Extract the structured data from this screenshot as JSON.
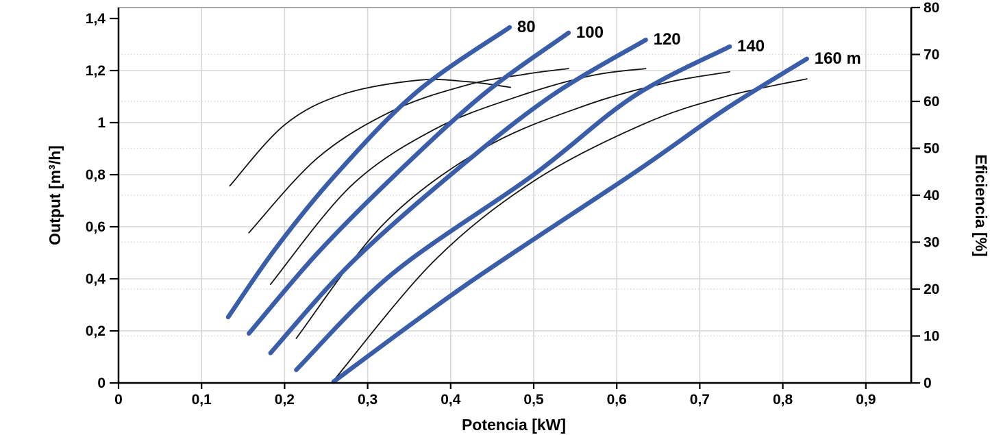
{
  "chart_data": {
    "type": "line",
    "title": "",
    "xlabel": "Potencia [kW]",
    "ylabel_left": "Output [m³/h]",
    "ylabel_right": "Eficiencia [%]",
    "xlim": [
      0,
      0.955
    ],
    "ylim_left": [
      0,
      1.44
    ],
    "ylim_right": [
      0,
      80
    ],
    "legend": "none",
    "grid": {
      "vertical_solid_power": [
        0.1,
        0.2,
        0.3,
        0.4,
        0.5,
        0.6,
        0.7,
        0.8,
        0.9
      ],
      "horizontal_solid_output": [
        0.2,
        0.4,
        0.6,
        0.8,
        1.0,
        1.2
      ],
      "horizontal_dotted_efficiency": [
        10,
        20,
        30,
        40,
        50,
        60,
        70
      ]
    },
    "x_ticks": {
      "values": [
        0,
        0.1,
        0.2,
        0.3,
        0.4,
        0.5,
        0.6,
        0.7,
        0.8,
        0.9
      ],
      "labels": [
        "0",
        "0,1",
        "0,2",
        "0,3",
        "0,4",
        "0,5",
        "0,6",
        "0,7",
        "0,8",
        "0,9"
      ]
    },
    "y_left_ticks": {
      "values": [
        0,
        0.2,
        0.4,
        0.6,
        0.8,
        1.0,
        1.2,
        1.4
      ],
      "labels": [
        "0",
        "0,2",
        "0,4",
        "0,6",
        "0,8",
        "1",
        "1,2",
        "1,4"
      ]
    },
    "y_right_ticks": {
      "values": [
        0,
        10,
        20,
        30,
        40,
        50,
        60,
        70,
        80
      ],
      "labels": [
        "0",
        "10",
        "20",
        "30",
        "40",
        "50",
        "60",
        "70",
        "80"
      ]
    },
    "colors": {
      "head_curve": "#3a5da9",
      "efficiency_curve": "#141414",
      "grid_solid": "#d7d7d7",
      "grid_dotted": "#d9d9d9",
      "axis": "#000000",
      "top_border": "#a8a8a8"
    },
    "head_curves": [
      {
        "label": "80",
        "head_m": 80,
        "points": [
          [
            0.132,
            0.253
          ],
          [
            0.19,
            0.52
          ],
          [
            0.263,
            0.805
          ],
          [
            0.36,
            1.12
          ],
          [
            0.471,
            1.366
          ]
        ]
      },
      {
        "label": "100",
        "head_m": 100,
        "points": [
          [
            0.157,
            0.19
          ],
          [
            0.24,
            0.5
          ],
          [
            0.335,
            0.805
          ],
          [
            0.44,
            1.11
          ],
          [
            0.542,
            1.345
          ]
        ]
      },
      {
        "label": "120",
        "head_m": 120,
        "points": [
          [
            0.183,
            0.115
          ],
          [
            0.28,
            0.46
          ],
          [
            0.402,
            0.805
          ],
          [
            0.52,
            1.1
          ],
          [
            0.635,
            1.318
          ]
        ]
      },
      {
        "label": "140",
        "head_m": 140,
        "points": [
          [
            0.214,
            0.05
          ],
          [
            0.33,
            0.42
          ],
          [
            0.5,
            0.8
          ],
          [
            0.62,
            1.1
          ],
          [
            0.736,
            1.292
          ]
        ]
      },
      {
        "label": "160 m",
        "head_m": 160,
        "points": [
          [
            0.259,
            0.005
          ],
          [
            0.42,
            0.38
          ],
          [
            0.62,
            0.805
          ],
          [
            0.73,
            1.05
          ],
          [
            0.829,
            1.245
          ]
        ]
      }
    ],
    "efficiency_curves": [
      {
        "head_m": 80,
        "points": [
          [
            0.134,
            42.0
          ],
          [
            0.2,
            55.0
          ],
          [
            0.27,
            61.5
          ],
          [
            0.36,
            64.5
          ],
          [
            0.42,
            64.2
          ],
          [
            0.472,
            63.0
          ]
        ]
      },
      {
        "head_m": 100,
        "points": [
          [
            0.157,
            32.0
          ],
          [
            0.24,
            48.0
          ],
          [
            0.33,
            58.0
          ],
          [
            0.42,
            63.5
          ],
          [
            0.49,
            65.8
          ],
          [
            0.542,
            67.0
          ]
        ]
      },
      {
        "head_m": 120,
        "points": [
          [
            0.183,
            21.0
          ],
          [
            0.28,
            42.0
          ],
          [
            0.38,
            54.0
          ],
          [
            0.48,
            61.0
          ],
          [
            0.57,
            65.5
          ],
          [
            0.635,
            67.0
          ]
        ]
      },
      {
        "head_m": 140,
        "points": [
          [
            0.214,
            9.5
          ],
          [
            0.32,
            34.0
          ],
          [
            0.44,
            50.0
          ],
          [
            0.56,
            59.0
          ],
          [
            0.66,
            64.0
          ],
          [
            0.736,
            66.3
          ]
        ]
      },
      {
        "head_m": 160,
        "points": [
          [
            0.259,
            0.5
          ],
          [
            0.38,
            26.0
          ],
          [
            0.5,
            43.0
          ],
          [
            0.63,
            55.0
          ],
          [
            0.73,
            61.0
          ],
          [
            0.829,
            64.8
          ]
        ]
      }
    ]
  }
}
